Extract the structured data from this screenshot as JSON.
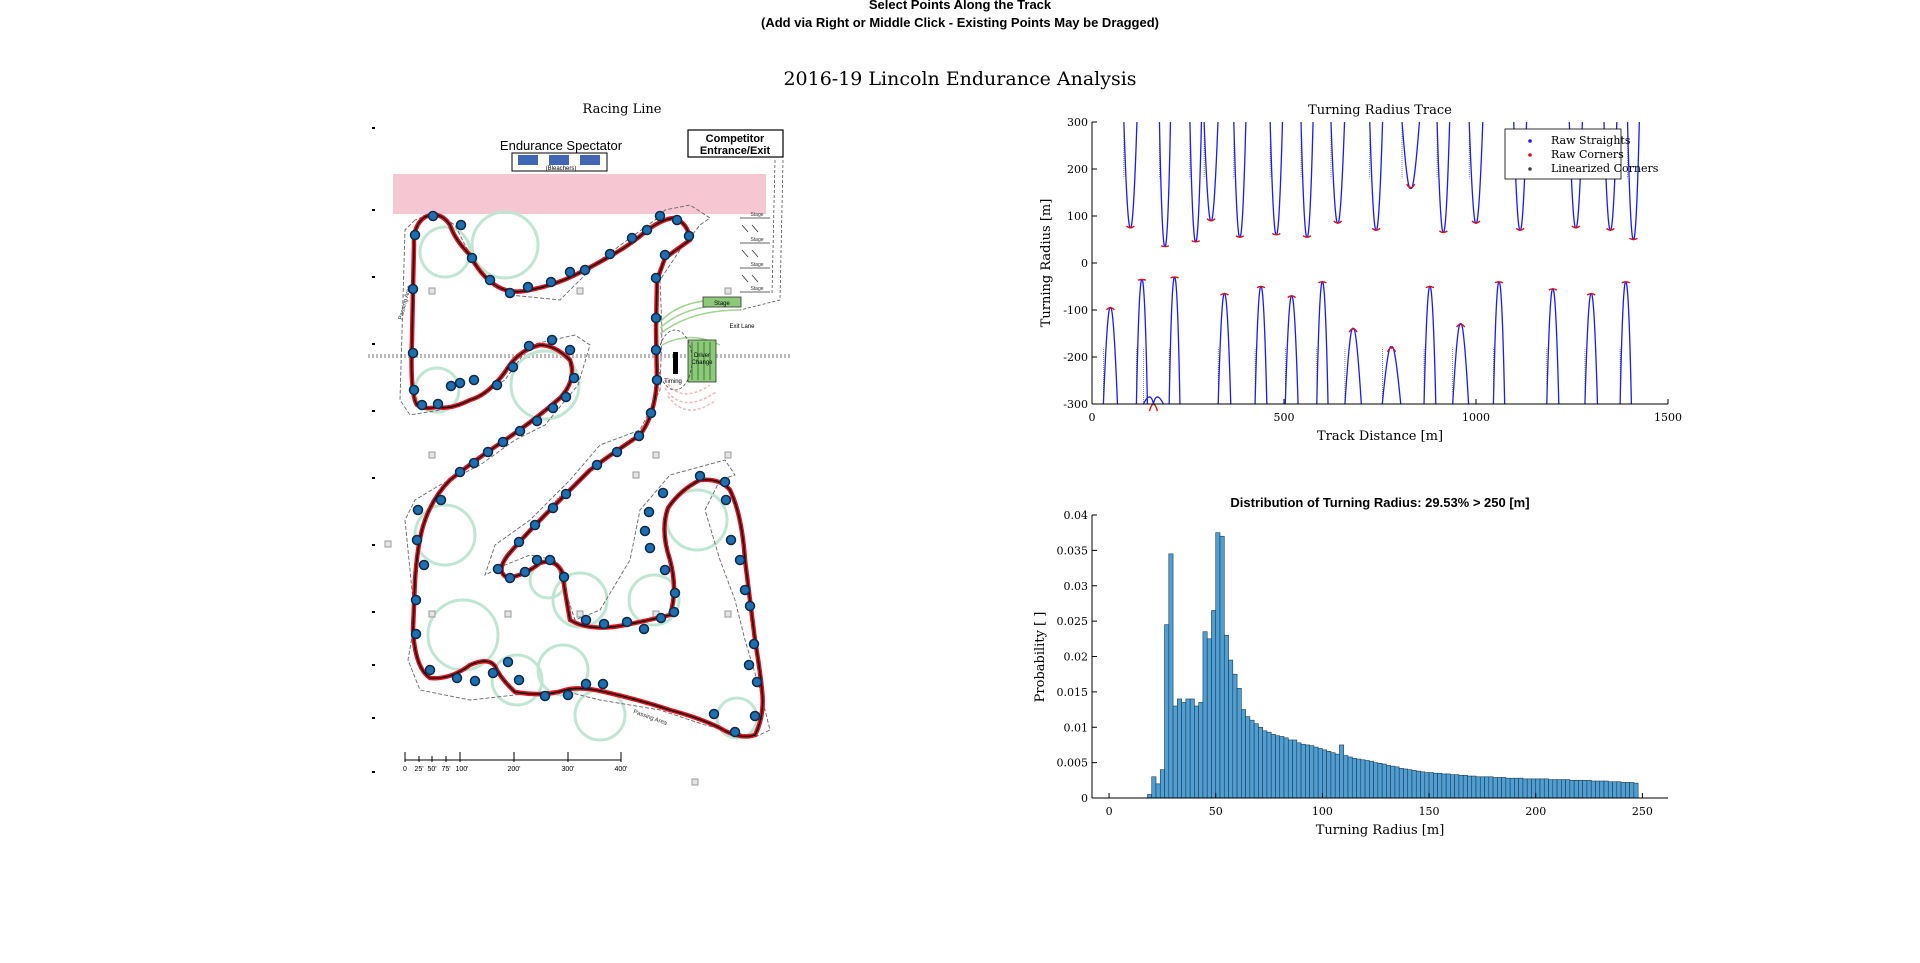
{
  "header": {
    "line1": "Select Points Along the Track",
    "line2": "(Add via Right or Middle Click - Existing Points May be Dragged)"
  },
  "figure": {
    "title": "2016-19 Lincoln Endurance Analysis"
  },
  "racing_line": {
    "title": "Racing Line",
    "map_labels": {
      "spectator": "Endurance Spectator",
      "bleachers": "(Bleachers)",
      "competitor_line1": "Competitor",
      "competitor_line2": "Entrance/Exit",
      "passing1": "Passing Area",
      "passing2": "Passing Area",
      "passing3": "Passing Area",
      "driver_change_line1": "Driver",
      "driver_change_line2": "Change",
      "timing": "Timing",
      "stage": "Stage",
      "exit_lane": "Exit Lane",
      "stage_labels": [
        "Stage",
        "Stage",
        "Stage",
        "Stage"
      ]
    },
    "scale_labels": [
      "0",
      "25'",
      "50'",
      "75'",
      "100'",
      "200'",
      "300'",
      "400'"
    ]
  },
  "colors": {
    "racing_line": "#e8101c",
    "centerline": "#111111",
    "point_fill": "#1f6fb0",
    "point_edge": "#0a2a4a",
    "spectator_zone": "#f7c6d3",
    "cones": "#bfe6d2",
    "raw_straights": "#1a1aff",
    "raw_corners": "#e01010",
    "linearized": "#404040",
    "hist_bar": "#4f9fd2",
    "hist_edge": "#1b3a55"
  },
  "chart_data": [
    {
      "type": "line",
      "title": "Turning Radius Trace",
      "xlabel": "Track Distance [m]",
      "ylabel": "Turning Radius [m]",
      "xlim": [
        0,
        1500
      ],
      "ylim": [
        -300,
        300
      ],
      "xticks": [
        0,
        500,
        1000,
        1500
      ],
      "yticks": [
        -300,
        -200,
        -100,
        0,
        100,
        200,
        300
      ],
      "legend_position": "top-right",
      "series": [
        {
          "name": "Raw Straights",
          "color": "#1a1aff"
        },
        {
          "name": "Raw Corners",
          "color": "#e01010"
        },
        {
          "name": "Linearized Corners",
          "color": "#404040"
        }
      ],
      "corners": [
        {
          "x": 48,
          "r": -95
        },
        {
          "x": 100,
          "r": 75
        },
        {
          "x": 130,
          "r": -35
        },
        {
          "x": 160,
          "r": -300
        },
        {
          "x": 190,
          "r": 35
        },
        {
          "x": 215,
          "r": -30
        },
        {
          "x": 270,
          "r": 45
        },
        {
          "x": 310,
          "r": 90
        },
        {
          "x": 345,
          "r": -65
        },
        {
          "x": 385,
          "r": 55
        },
        {
          "x": 440,
          "r": -50
        },
        {
          "x": 480,
          "r": 60
        },
        {
          "x": 520,
          "r": -70
        },
        {
          "x": 560,
          "r": 55
        },
        {
          "x": 600,
          "r": -40
        },
        {
          "x": 640,
          "r": 85
        },
        {
          "x": 680,
          "r": -140
        },
        {
          "x": 740,
          "r": 70
        },
        {
          "x": 780,
          "r": -180
        },
        {
          "x": 830,
          "r": 160
        },
        {
          "x": 880,
          "r": -50
        },
        {
          "x": 915,
          "r": 65
        },
        {
          "x": 960,
          "r": -130
        },
        {
          "x": 1000,
          "r": 85
        },
        {
          "x": 1060,
          "r": -40
        },
        {
          "x": 1115,
          "r": 70
        },
        {
          "x": 1200,
          "r": -55
        },
        {
          "x": 1260,
          "r": 75
        },
        {
          "x": 1300,
          "r": -65
        },
        {
          "x": 1350,
          "r": 70
        },
        {
          "x": 1390,
          "r": -40
        },
        {
          "x": 1410,
          "r": 50
        }
      ]
    },
    {
      "type": "bar",
      "title": "Distribution of Turning Radius: 29.53% > 250 [m]",
      "xlabel": "Turning Radius [m]",
      "ylabel": "Probability [ ]",
      "xlim": [
        -8,
        262
      ],
      "ylim": [
        0,
        0.04
      ],
      "xticks": [
        0,
        50,
        100,
        150,
        200,
        250
      ],
      "yticks": [
        0,
        0.005,
        0.01,
        0.015,
        0.02,
        0.025,
        0.03,
        0.035,
        0.04
      ],
      "bin_width": 2,
      "bin_start": 0,
      "values": [
        0,
        0,
        0,
        0,
        0,
        0,
        0,
        0,
        0,
        0.0005,
        0.003,
        0.002,
        0.004,
        0.0245,
        0.0345,
        0.013,
        0.014,
        0.0135,
        0.014,
        0.014,
        0.013,
        0.0135,
        0.0235,
        0.0225,
        0.0265,
        0.0375,
        0.037,
        0.023,
        0.0195,
        0.0175,
        0.0155,
        0.0125,
        0.0115,
        0.011,
        0.0105,
        0.01,
        0.0095,
        0.0093,
        0.009,
        0.0088,
        0.0087,
        0.0085,
        0.0082,
        0.0082,
        0.0078,
        0.0076,
        0.0075,
        0.0074,
        0.0072,
        0.007,
        0.0068,
        0.0066,
        0.0064,
        0.0062,
        0.0075,
        0.006,
        0.0058,
        0.0056,
        0.0055,
        0.0054,
        0.0053,
        0.0052,
        0.005,
        0.0049,
        0.0048,
        0.0046,
        0.0045,
        0.0044,
        0.0042,
        0.0041,
        0.004,
        0.0039,
        0.0038,
        0.0037,
        0.0036,
        0.0036,
        0.0035,
        0.0035,
        0.0034,
        0.0034,
        0.0033,
        0.0033,
        0.0032,
        0.0032,
        0.0031,
        0.0031,
        0.003,
        0.003,
        0.003,
        0.003,
        0.0029,
        0.0029,
        0.0029,
        0.0028,
        0.0028,
        0.0028,
        0.0028,
        0.0027,
        0.0027,
        0.0027,
        0.0027,
        0.0027,
        0.0027,
        0.0026,
        0.0026,
        0.0026,
        0.0026,
        0.0026,
        0.0025,
        0.0025,
        0.0025,
        0.0025,
        0.0025,
        0.0024,
        0.0024,
        0.0024,
        0.0024,
        0.0023,
        0.0023,
        0.0023,
        0.0022,
        0.0022,
        0.0022,
        0.0021
      ]
    }
  ]
}
